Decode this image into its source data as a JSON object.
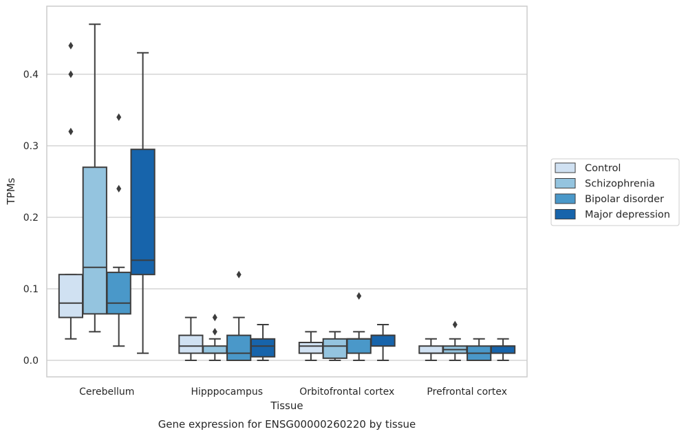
{
  "chart_data": {
    "type": "box",
    "title": "",
    "caption": "Gene expression for ENSG00000260220 by tissue",
    "xlabel": "Tissue",
    "ylabel": "TPMs",
    "ylim": [
      -0.023,
      0.495
    ],
    "yticks": [
      0.0,
      0.1,
      0.2,
      0.3,
      0.4
    ],
    "ytick_labels": [
      "0.0",
      "0.1",
      "0.2",
      "0.3",
      "0.4"
    ],
    "grid": "horizontal",
    "legend_position": "outside-right",
    "categories": [
      "Cerebellum",
      "Hipppocampus",
      "Orbitofrontal cortex",
      "Prefrontal cortex"
    ],
    "series": [
      {
        "name": "Control",
        "color": "#d0e1f2",
        "boxes": [
          {
            "min": 0.03,
            "q1": 0.06,
            "median": 0.08,
            "q3": 0.12,
            "max": 0.12,
            "outliers": [
              0.32,
              0.4,
              0.44
            ]
          },
          {
            "min": 0.0,
            "q1": 0.01,
            "median": 0.02,
            "q3": 0.035,
            "max": 0.06,
            "outliers": []
          },
          {
            "min": 0.0,
            "q1": 0.01,
            "median": 0.02,
            "q3": 0.025,
            "max": 0.04,
            "outliers": []
          },
          {
            "min": 0.0,
            "q1": 0.01,
            "median": 0.01,
            "q3": 0.02,
            "max": 0.03,
            "outliers": []
          }
        ]
      },
      {
        "name": "Schizophrenia",
        "color": "#94c4df",
        "boxes": [
          {
            "min": 0.04,
            "q1": 0.065,
            "median": 0.13,
            "q3": 0.27,
            "max": 0.47,
            "outliers": []
          },
          {
            "min": 0.0,
            "q1": 0.01,
            "median": 0.01,
            "q3": 0.02,
            "max": 0.03,
            "outliers": [
              0.04,
              0.06
            ]
          },
          {
            "min": 0.0,
            "q1": 0.003,
            "median": 0.02,
            "q3": 0.03,
            "max": 0.04,
            "outliers": []
          },
          {
            "min": 0.0,
            "q1": 0.01,
            "median": 0.015,
            "q3": 0.02,
            "max": 0.03,
            "outliers": [
              0.05
            ]
          }
        ]
      },
      {
        "name": "Bipolar disorder",
        "color": "#4a98c9",
        "boxes": [
          {
            "min": 0.02,
            "q1": 0.065,
            "median": 0.08,
            "q3": 0.123,
            "max": 0.13,
            "outliers": [
              0.24,
              0.34
            ]
          },
          {
            "min": 0.0,
            "q1": 0.0,
            "median": 0.01,
            "q3": 0.035,
            "max": 0.06,
            "outliers": [
              0.12
            ]
          },
          {
            "min": 0.0,
            "q1": 0.01,
            "median": 0.03,
            "q3": 0.03,
            "max": 0.04,
            "outliers": [
              0.09
            ]
          },
          {
            "min": 0.0,
            "q1": 0.0,
            "median": 0.01,
            "q3": 0.02,
            "max": 0.03,
            "outliers": []
          }
        ]
      },
      {
        "name": "Major depression",
        "color": "#1764ab",
        "boxes": [
          {
            "min": 0.01,
            "q1": 0.12,
            "median": 0.14,
            "q3": 0.295,
            "max": 0.43,
            "outliers": []
          },
          {
            "min": 0.0,
            "q1": 0.005,
            "median": 0.02,
            "q3": 0.03,
            "max": 0.05,
            "outliers": []
          },
          {
            "min": 0.0,
            "q1": 0.02,
            "median": 0.035,
            "q3": 0.035,
            "max": 0.05,
            "outliers": []
          },
          {
            "min": 0.0,
            "q1": 0.01,
            "median": 0.02,
            "q3": 0.02,
            "max": 0.03,
            "outliers": []
          }
        ]
      }
    ]
  }
}
